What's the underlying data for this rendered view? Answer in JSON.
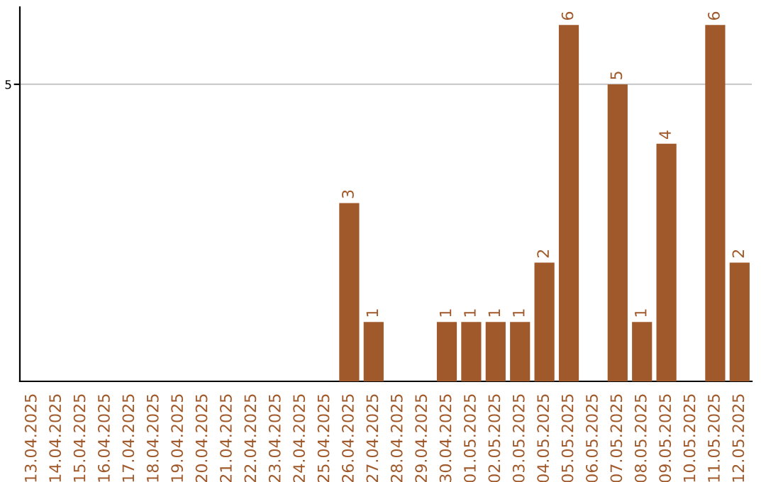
{
  "chart_data": {
    "type": "bar",
    "categories": [
      "13.04.2025",
      "14.04.2025",
      "15.04.2025",
      "16.04.2025",
      "17.04.2025",
      "18.04.2025",
      "19.04.2025",
      "20.04.2025",
      "21.04.2025",
      "22.04.2025",
      "23.04.2025",
      "24.04.2025",
      "25.04.2025",
      "26.04.2025",
      "27.04.2025",
      "28.04.2025",
      "29.04.2025",
      "30.04.2025",
      "01.05.2025",
      "02.05.2025",
      "03.05.2025",
      "04.05.2025",
      "05.05.2025",
      "06.05.2025",
      "07.05.2025",
      "08.05.2025",
      "09.05.2025",
      "10.05.2025",
      "11.05.2025",
      "12.05.2025"
    ],
    "values": [
      null,
      null,
      null,
      null,
      null,
      null,
      null,
      null,
      null,
      null,
      null,
      null,
      null,
      3,
      1,
      null,
      null,
      1,
      1,
      1,
      1,
      2,
      6,
      null,
      5,
      1,
      4,
      null,
      6,
      2
    ],
    "data_labels": true,
    "color": "#a0592a",
    "ylim": [
      0,
      6.3
    ],
    "yticks": [
      5
    ],
    "grid": "y"
  }
}
